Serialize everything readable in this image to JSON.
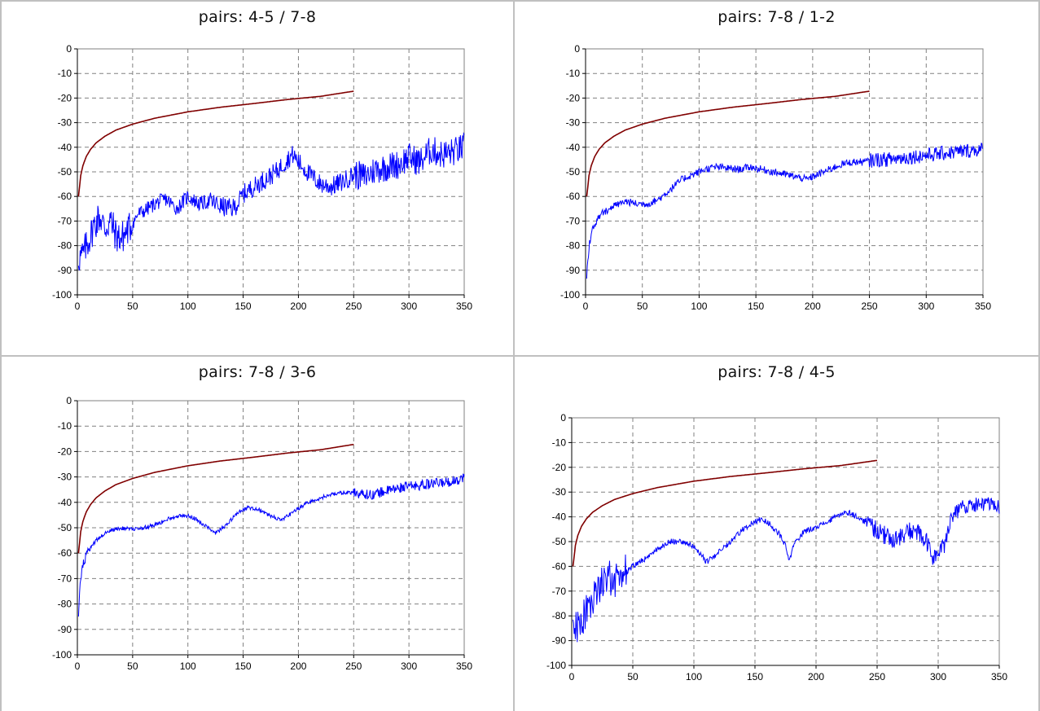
{
  "colors": {
    "border": "#c0c0c0",
    "curve_upper": "#800000",
    "curve_lower": "#0000ff",
    "gridline": "#808080",
    "axis": "#808080"
  },
  "chart_data": [
    {
      "type": "line",
      "title": "pairs: 4-5 / 7-8",
      "xlabel": "",
      "ylabel": "",
      "xlim": [
        0,
        350
      ],
      "ylim": [
        -100,
        0
      ],
      "xticks": [
        "0",
        "50",
        "100",
        "150",
        "200",
        "250",
        "300",
        "350"
      ],
      "yticks": [
        "0",
        "-10",
        "-20",
        "-30",
        "-40",
        "-50",
        "-60",
        "-70",
        "-80",
        "-90",
        "-100"
      ],
      "grid": true,
      "series": [
        {
          "x": [
            1,
            2,
            3,
            5,
            8,
            12,
            17,
            25,
            35,
            50,
            70,
            100,
            130,
            160,
            190,
            220,
            250
          ],
          "values": [
            -60,
            -56,
            -51.5,
            -47.5,
            -43.8,
            -40.8,
            -38.2,
            -35.5,
            -33,
            -30.6,
            -28.2,
            -25.6,
            -23.7,
            -22.2,
            -20.6,
            -19.3,
            -17.2
          ]
        },
        {
          "x": [
            1,
            5,
            10,
            15,
            20,
            25,
            30,
            35,
            40,
            45,
            50,
            55,
            60,
            70,
            80,
            90,
            100,
            110,
            120,
            130,
            140,
            145,
            150,
            160,
            170,
            180,
            190,
            195,
            200,
            210,
            220,
            230,
            240,
            250,
            260,
            270,
            280,
            290,
            300,
            310,
            320,
            330,
            340,
            350
          ],
          "values": [
            -85,
            -84,
            -78,
            -72,
            -68,
            -73,
            -70,
            -76,
            -77,
            -74,
            -71,
            -67,
            -66,
            -63,
            -61,
            -65,
            -60,
            -63,
            -62,
            -64,
            -65,
            -63,
            -59,
            -56,
            -53,
            -50,
            -45,
            -43,
            -46,
            -51,
            -55,
            -56,
            -54,
            -51,
            -52,
            -49,
            -48,
            -47,
            -44,
            -46,
            -41,
            -43,
            -42,
            -40
          ]
        }
      ]
    },
    {
      "type": "line",
      "title": "pairs: 7-8 / 1-2",
      "xlabel": "",
      "ylabel": "",
      "xlim": [
        0,
        350
      ],
      "ylim": [
        -100,
        0
      ],
      "xticks": [
        "0",
        "50",
        "100",
        "150",
        "200",
        "250",
        "300",
        "350"
      ],
      "yticks": [
        "0",
        "-10",
        "-20",
        "-30",
        "-40",
        "-50",
        "-60",
        "-70",
        "-80",
        "-90",
        "-100"
      ],
      "grid": true,
      "series": [
        {
          "x": [
            1,
            2,
            3,
            5,
            8,
            12,
            17,
            25,
            35,
            50,
            70,
            100,
            130,
            160,
            190,
            220,
            250
          ],
          "values": [
            -60,
            -56,
            -51.5,
            -47.5,
            -43.8,
            -40.8,
            -38.2,
            -35.5,
            -33,
            -30.6,
            -28.2,
            -25.6,
            -23.7,
            -22.2,
            -20.6,
            -19.3,
            -17.2
          ]
        },
        {
          "x": [
            1,
            2,
            3,
            5,
            8,
            12,
            17,
            25,
            35,
            45,
            55,
            65,
            75,
            85,
            95,
            105,
            115,
            125,
            135,
            145,
            155,
            165,
            175,
            185,
            195,
            205,
            215,
            225,
            235,
            245,
            255,
            265,
            275,
            285,
            295,
            305,
            315,
            325,
            335,
            345,
            350
          ],
          "values": [
            -92,
            -86,
            -80,
            -76,
            -71,
            -68,
            -66,
            -64,
            -62,
            -63,
            -63,
            -61,
            -57,
            -53,
            -51,
            -49,
            -48,
            -48.5,
            -49,
            -48,
            -49,
            -50,
            -51,
            -52,
            -53,
            -51,
            -49,
            -47,
            -46,
            -46,
            -45,
            -45,
            -44.5,
            -44,
            -43.5,
            -43,
            -42.5,
            -42,
            -41.5,
            -41,
            -41
          ]
        }
      ]
    },
    {
      "type": "line",
      "title": "pairs: 7-8 / 3-6",
      "xlabel": "",
      "ylabel": "",
      "xlim": [
        0,
        350
      ],
      "ylim": [
        -100,
        0
      ],
      "xticks": [
        "0",
        "50",
        "100",
        "150",
        "200",
        "250",
        "300",
        "350"
      ],
      "yticks": [
        "0",
        "-10",
        "-20",
        "-30",
        "-40",
        "-50",
        "-60",
        "-70",
        "-80",
        "-90",
        "-100"
      ],
      "grid": true,
      "series": [
        {
          "x": [
            1,
            2,
            3,
            5,
            8,
            12,
            17,
            25,
            35,
            50,
            70,
            100,
            130,
            160,
            190,
            220,
            250
          ],
          "values": [
            -60,
            -56,
            -51.5,
            -47.5,
            -43.8,
            -40.8,
            -38.2,
            -35.5,
            -33,
            -30.6,
            -28.2,
            -25.6,
            -23.7,
            -22.2,
            -20.6,
            -19.3,
            -17.2
          ]
        },
        {
          "x": [
            1,
            2,
            3,
            5,
            8,
            12,
            17,
            25,
            35,
            45,
            55,
            65,
            75,
            85,
            95,
            105,
            115,
            125,
            135,
            145,
            155,
            165,
            175,
            185,
            195,
            205,
            215,
            225,
            235,
            245,
            255,
            265,
            275,
            285,
            295,
            305,
            315,
            325,
            335,
            345,
            350
          ],
          "values": [
            -83,
            -76,
            -70,
            -65,
            -61,
            -58,
            -55,
            -52,
            -50.5,
            -50,
            -50.5,
            -49.5,
            -48,
            -46,
            -45,
            -46,
            -49,
            -52,
            -49,
            -44,
            -42,
            -43,
            -45.5,
            -47,
            -44,
            -41,
            -39,
            -37.5,
            -36.5,
            -36,
            -36.5,
            -37,
            -36,
            -35,
            -34,
            -33.5,
            -33,
            -32.5,
            -32,
            -31,
            -30
          ]
        }
      ]
    },
    {
      "type": "line",
      "title": "pairs: 7-8 / 4-5",
      "xlabel": "",
      "ylabel": "",
      "xlim": [
        0,
        350
      ],
      "ylim": [
        -100,
        0
      ],
      "xticks": [
        "0",
        "50",
        "100",
        "150",
        "200",
        "250",
        "300",
        "350"
      ],
      "yticks": [
        "0",
        "-10",
        "-20",
        "-30",
        "-40",
        "-50",
        "-60",
        "-70",
        "-80",
        "-90",
        "-100"
      ],
      "grid": true,
      "series": [
        {
          "x": [
            1,
            2,
            3,
            5,
            8,
            12,
            17,
            25,
            35,
            50,
            70,
            100,
            130,
            160,
            190,
            220,
            250
          ],
          "values": [
            -60,
            -56,
            -51.5,
            -47.5,
            -43.8,
            -40.8,
            -38.2,
            -35.5,
            -33,
            -30.6,
            -28.2,
            -25.6,
            -23.7,
            -22.2,
            -20.6,
            -19.3,
            -17.2
          ]
        },
        {
          "x": [
            1,
            5,
            10,
            15,
            20,
            25,
            30,
            35,
            40,
            45,
            50,
            60,
            70,
            80,
            90,
            100,
            105,
            110,
            115,
            120,
            130,
            140,
            150,
            155,
            160,
            170,
            175,
            178,
            182,
            190,
            200,
            210,
            220,
            225,
            230,
            240,
            250,
            260,
            270,
            280,
            290,
            295,
            300,
            305,
            310,
            320,
            330,
            340,
            350
          ],
          "values": [
            -87,
            -84,
            -80,
            -75,
            -70,
            -66,
            -64,
            -66,
            -63,
            -62,
            -60,
            -57,
            -53,
            -50,
            -50,
            -52,
            -55,
            -58,
            -57,
            -54,
            -50,
            -45,
            -42,
            -41,
            -42,
            -47,
            -52,
            -58,
            -51,
            -46,
            -44,
            -42,
            -39,
            -38,
            -39,
            -42,
            -45,
            -49,
            -48,
            -45,
            -50,
            -56,
            -55,
            -52,
            -40,
            -36,
            -35,
            -35,
            -36
          ]
        }
      ]
    }
  ]
}
